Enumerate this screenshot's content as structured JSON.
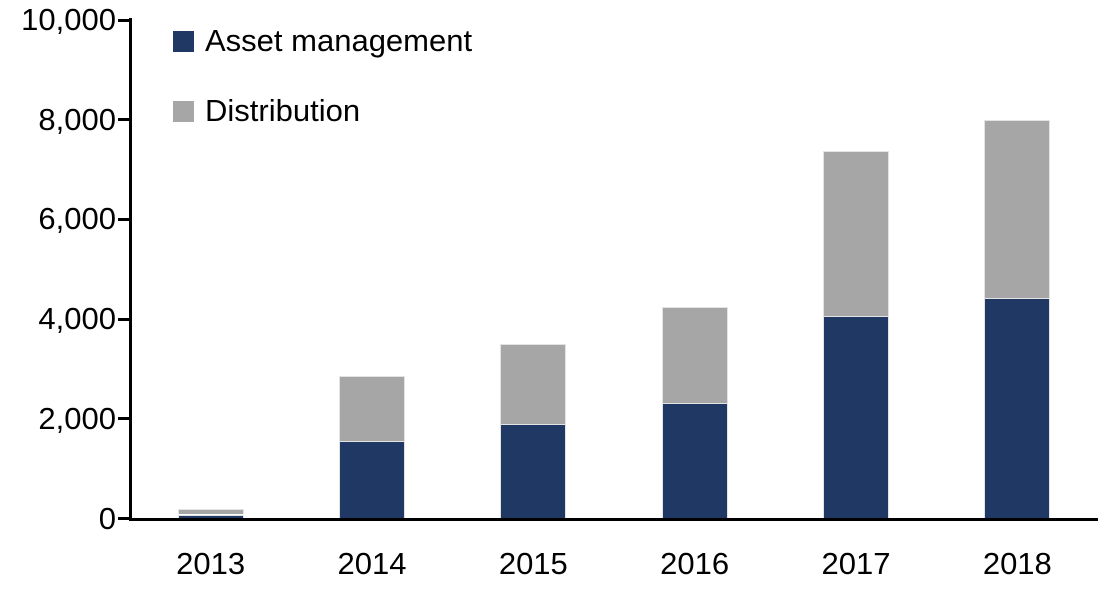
{
  "chart_data": {
    "type": "bar",
    "stacked": true,
    "title": "",
    "xlabel": "",
    "ylabel": "",
    "categories": [
      "2013",
      "2014",
      "2015",
      "2016",
      "2017",
      "2018"
    ],
    "series": [
      {
        "name": "Asset management",
        "color": "#1F3864",
        "values": [
          80,
          1560,
          1890,
          2310,
          4060,
          4420
        ]
      },
      {
        "name": "Distribution",
        "color": "#A6A6A6",
        "values": [
          110,
          1300,
          1610,
          1940,
          3320,
          3580
        ]
      }
    ],
    "ylim": [
      0,
      10000
    ],
    "yticks": [
      0,
      2000,
      4000,
      6000,
      8000,
      10000
    ],
    "ytick_labels": [
      "0",
      "2,000",
      "4,000",
      "6,000",
      "8,000",
      "10,000"
    ],
    "grid": false,
    "legend_position": "top-left",
    "axis_color": "#000000",
    "text_color": "#000000",
    "background": "#FFFFFF"
  }
}
